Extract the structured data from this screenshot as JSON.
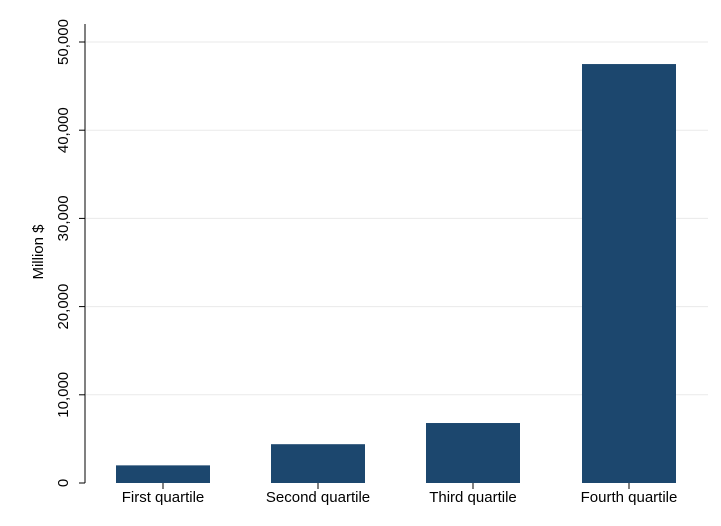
{
  "colors": {
    "background": "#ffffff",
    "plot_background": "#ffffff",
    "bar": "#1c476e",
    "grid": "#eaeaea",
    "axis": "#000000",
    "text": "#000000"
  },
  "chart_data": {
    "type": "bar",
    "categories": [
      "First quartile",
      "Second quartile",
      "Third quartile",
      "Fourth quartile"
    ],
    "values": [
      2000,
      4400,
      6800,
      47500
    ],
    "title": "",
    "xlabel": "",
    "ylabel": "Million $",
    "ylim": [
      0,
      50000
    ],
    "yticks": [
      0,
      10000,
      20000,
      30000,
      40000,
      50000
    ],
    "ytick_labels": [
      "0",
      "10,000",
      "20,000",
      "30,000",
      "40,000",
      "50,000"
    ],
    "grid": true,
    "legend": "none"
  }
}
